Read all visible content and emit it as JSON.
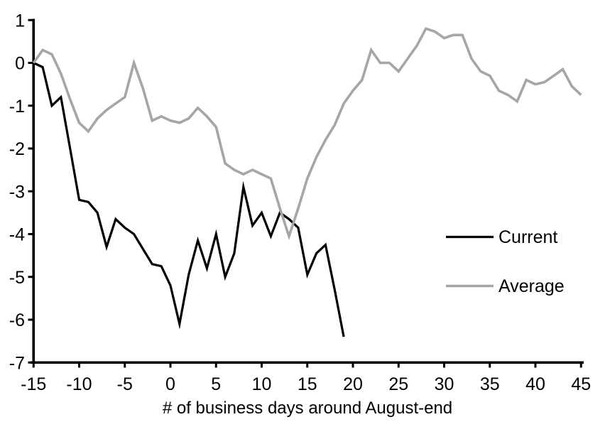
{
  "chart_data": {
    "type": "line",
    "xlabel": "# of business days around August-end",
    "xlim": [
      -15,
      45
    ],
    "ylim": [
      -7,
      1
    ],
    "xticks": [
      -15,
      -10,
      -5,
      0,
      5,
      10,
      15,
      20,
      25,
      30,
      35,
      40,
      45
    ],
    "yticks": [
      1,
      0,
      -1,
      -2,
      -3,
      -4,
      -5,
      -6,
      -7
    ],
    "grid": false,
    "legend_position": "middle-right",
    "x": [
      -15,
      -14,
      -13,
      -12,
      -11,
      -10,
      -9,
      -8,
      -7,
      -6,
      -5,
      -4,
      -3,
      -2,
      -1,
      0,
      1,
      2,
      3,
      4,
      5,
      6,
      7,
      8,
      9,
      10,
      11,
      12,
      13,
      14,
      15,
      16,
      17,
      18,
      19,
      20,
      21,
      22,
      23,
      24,
      25,
      26,
      27,
      28,
      29,
      30,
      31,
      32,
      33,
      34,
      35,
      36,
      37,
      38,
      39,
      40,
      41,
      42,
      43,
      44,
      45
    ],
    "series": [
      {
        "name": "Current",
        "color": "#000000",
        "stroke_width": 3.2,
        "values": [
          0.0,
          -0.1,
          -1.0,
          -0.8,
          -2.0,
          -3.2,
          -3.25,
          -3.5,
          -4.3,
          -3.65,
          -3.85,
          -4.0,
          -4.35,
          -4.7,
          -4.75,
          -5.2,
          -6.1,
          -4.95,
          -4.15,
          -4.8,
          -4.0,
          -5.0,
          -4.45,
          -2.9,
          -3.8,
          -3.5,
          -4.05,
          -3.5,
          -3.65,
          -3.85,
          -4.95,
          -4.45,
          -4.25,
          -5.3,
          -6.4,
          null,
          null,
          null,
          null,
          null,
          null,
          null,
          null,
          null,
          null,
          null,
          null,
          null,
          null,
          null,
          null,
          null,
          null,
          null,
          null,
          null,
          null,
          null,
          null,
          null,
          null
        ]
      },
      {
        "name": "Average",
        "color": "#a6a6a6",
        "stroke_width": 3.6,
        "values": [
          0.0,
          0.3,
          0.2,
          -0.25,
          -0.85,
          -1.4,
          -1.6,
          -1.3,
          -1.1,
          -0.95,
          -0.8,
          0.0,
          -0.6,
          -1.35,
          -1.25,
          -1.35,
          -1.4,
          -1.3,
          -1.05,
          -1.25,
          -1.5,
          -2.35,
          -2.5,
          -2.6,
          -2.5,
          -2.6,
          -2.7,
          -3.4,
          -4.05,
          -3.4,
          -2.7,
          -2.2,
          -1.8,
          -1.45,
          -0.95,
          -0.65,
          -0.4,
          0.3,
          0.0,
          0.0,
          -0.2,
          0.1,
          0.4,
          0.8,
          0.73,
          0.58,
          0.65,
          0.65,
          0.1,
          -0.2,
          -0.3,
          -0.65,
          -0.75,
          -0.9,
          -0.4,
          -0.5,
          -0.45,
          -0.3,
          -0.15,
          -0.55,
          -0.75
        ]
      }
    ]
  },
  "legend": {
    "current_label": "Current",
    "average_label": "Average"
  },
  "axis_color": "#000000"
}
